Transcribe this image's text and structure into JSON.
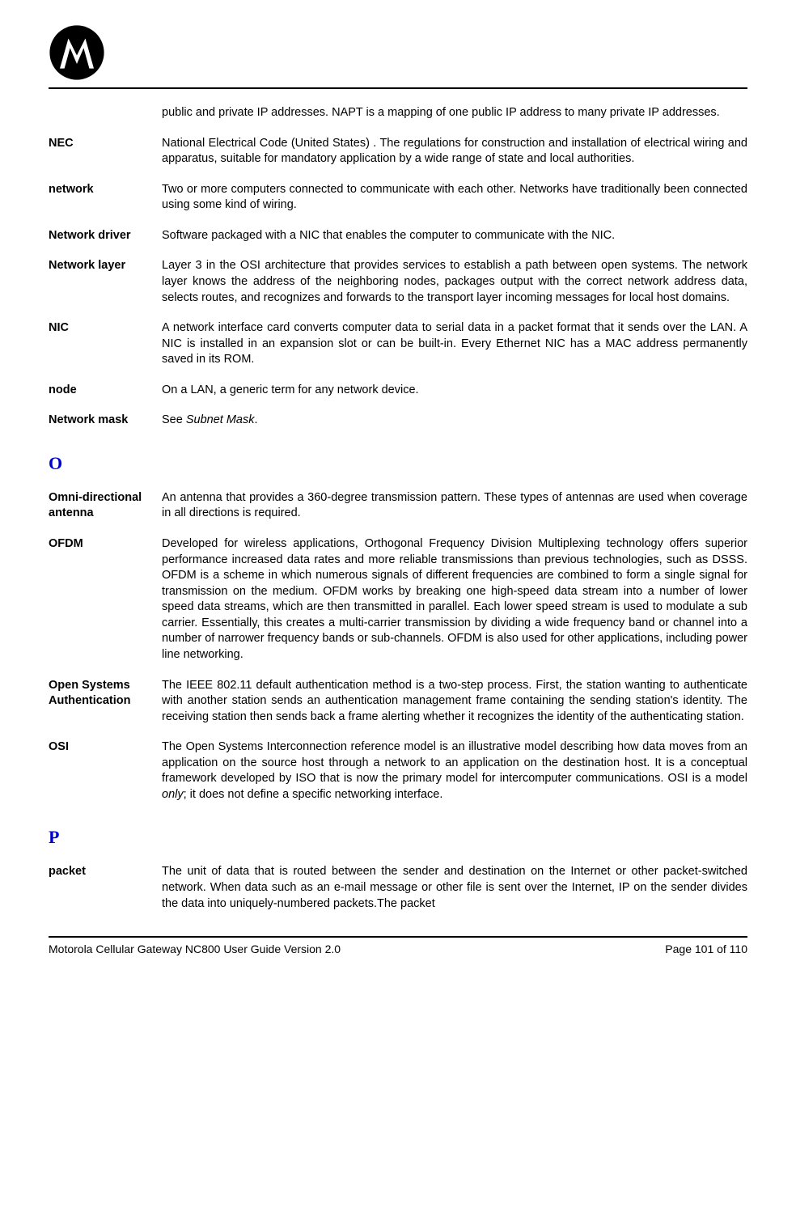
{
  "continued": "public and private IP addresses. NAPT is a mapping of one public IP address to many private IP addresses.",
  "entriesN": [
    {
      "term": "NEC",
      "def": "National Electrical Code (United States) . The regulations for construction and installation of electrical wiring and apparatus, suitable for mandatory application by a wide range of state and local authorities."
    },
    {
      "term": "network",
      "def": "Two or more computers connected to communicate with each other. Networks have traditionally been connected using some kind of wiring."
    },
    {
      "term": "Network driver",
      "def": "Software packaged with a NIC that enables the computer to communicate with the NIC."
    },
    {
      "term": "Network layer",
      "def": "Layer 3 in the OSI architecture that provides services to establish a path between open systems. The network layer knows the address of the neighboring nodes, packages output with the correct network address data, selects routes, and recognizes and forwards to the transport layer incoming messages for local host domains."
    },
    {
      "term": "NIC",
      "def": "A network interface card converts computer data to serial data in a packet format that it sends over the LAN. A NIC is installed in an expansion slot or can be built-in. Every Ethernet NIC has a MAC address permanently saved in its ROM."
    },
    {
      "term": "node",
      "def": "On a LAN, a generic term for any network device."
    }
  ],
  "networkMask": {
    "term": "Network mask",
    "pre": "See ",
    "italic": "Subnet Mask",
    "post": "."
  },
  "sectionO": "O",
  "entriesO": [
    {
      "term": "Omni-directional antenna",
      "def": "An antenna that provides a 360-degree transmission pattern. These types of antennas are used when coverage in all directions is required."
    },
    {
      "term": "OFDM",
      "def": "Developed for wireless applications, Orthogonal Frequency Division Multiplexing technology offers superior performance increased data rates and more reliable transmissions than previous technologies, such as DSSS. OFDM is a scheme in which numerous signals of different frequencies are combined to form a single signal for transmission on the medium. OFDM works by breaking one high-speed data stream into a number of lower speed data streams, which are then transmitted in parallel. Each lower speed stream is used to modulate a sub carrier. Essentially, this creates a multi-carrier transmission by dividing a wide frequency band or channel into a number of narrower frequency bands or sub-channels. OFDM is also used for other applications, including power line networking."
    },
    {
      "term": "Open Systems Authentication",
      "def": "The IEEE 802.11 default authentication method is a two-step process. First, the station wanting to authenticate with another station sends an authentication management frame containing the sending station's identity. The receiving station then sends back a frame alerting whether it recognizes the identity of the authenticating station."
    }
  ],
  "osi": {
    "term": "OSI",
    "pre": "The Open Systems Interconnection reference model is an illustrative model describing how data moves from an application on the source host through a network to an application on the destination host. It is a conceptual framework developed by ISO that is now the primary model for intercomputer communications. OSI is a model ",
    "italic": "only",
    "post": "; it does not define a specific networking interface."
  },
  "sectionP": "P",
  "entriesP": [
    {
      "term": "packet",
      "def": "The unit of data that is routed between the sender and destination on the Internet or other packet-switched network. When data such as an e-mail message or other file is sent over the Internet, IP on the sender divides the data into uniquely-numbered packets.The packet"
    }
  ],
  "footer": {
    "left": "Motorola Cellular Gateway NC800 User Guide Version 2.0",
    "right": "Page 101 of 110"
  }
}
